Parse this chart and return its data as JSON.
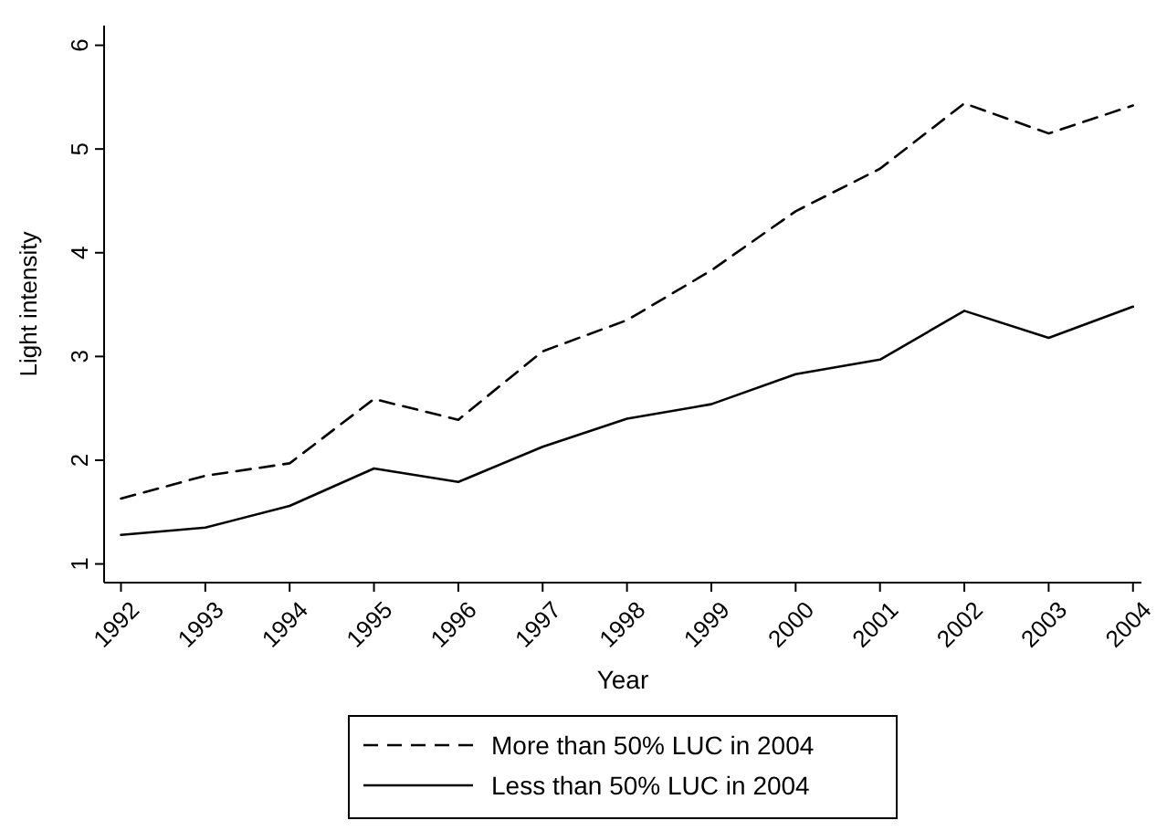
{
  "chart_data": {
    "type": "line",
    "xlabel": "Year",
    "ylabel": "Light intensity",
    "x": [
      1992,
      1993,
      1994,
      1995,
      1996,
      1997,
      1998,
      1999,
      2000,
      2001,
      2002,
      2003,
      2004
    ],
    "xlim": [
      1991.8,
      2004.1
    ],
    "xticks": [
      1992,
      1993,
      1994,
      1995,
      1996,
      1997,
      1998,
      1999,
      2000,
      2001,
      2002,
      2003,
      2004
    ],
    "ylim": [
      0.82,
      6.19
    ],
    "yticks": [
      1,
      2,
      3,
      4,
      5,
      6
    ],
    "grid": false,
    "legend": "bottom",
    "marker": "none",
    "series": [
      {
        "name": "More than 50% LUC in 2004",
        "color": "#000000",
        "line_style": "dashed",
        "values": [
          1.63,
          1.85,
          1.97,
          2.59,
          2.39,
          3.05,
          3.35,
          3.83,
          4.4,
          4.81,
          5.44,
          5.15,
          5.42
        ]
      },
      {
        "name": "Less than 50% LUC in 2004",
        "color": "#000000",
        "line_style": "solid",
        "values": [
          1.28,
          1.35,
          1.56,
          1.92,
          1.79,
          2.13,
          2.4,
          2.54,
          2.83,
          2.97,
          3.44,
          3.18,
          3.48
        ]
      }
    ]
  }
}
